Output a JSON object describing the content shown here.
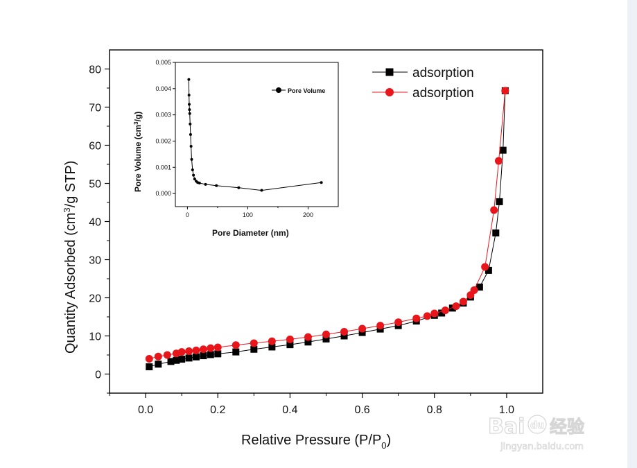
{
  "chart_data": {
    "type": "scatter",
    "xlabel": "Relative Pressure (P/P",
    "xlabel_sub": "0",
    "xlabel_close": ")",
    "ylabel": "Quantity Adsorbed (cm",
    "ylabel_sup": "3",
    "ylabel_tail": "/g STP)",
    "xlim": [
      -0.1,
      1.1
    ],
    "ylim": [
      -5,
      85
    ],
    "x_ticks": [
      0.0,
      0.2,
      0.4,
      0.6,
      0.8,
      1.0
    ],
    "x_tick_labels": [
      "0.0",
      "0.2",
      "0.4",
      "0.6",
      "0.8",
      "1.0"
    ],
    "y_ticks": [
      0,
      10,
      20,
      30,
      40,
      50,
      60,
      70,
      80
    ],
    "y_tick_labels": [
      "0",
      "10",
      "20",
      "30",
      "40",
      "50",
      "60",
      "70",
      "80"
    ],
    "legend_position": "top-right",
    "series": [
      {
        "name": "adsorption",
        "color": "#000000",
        "marker": "square",
        "x": [
          0.01,
          0.035,
          0.07,
          0.085,
          0.1,
          0.12,
          0.14,
          0.16,
          0.18,
          0.2,
          0.25,
          0.3,
          0.35,
          0.4,
          0.45,
          0.5,
          0.55,
          0.6,
          0.65,
          0.7,
          0.75,
          0.8,
          0.82,
          0.85,
          0.88,
          0.9,
          0.925,
          0.95,
          0.97,
          0.98,
          0.99,
          0.996
        ],
        "y": [
          1.9,
          2.6,
          3.3,
          3.6,
          3.9,
          4.2,
          4.5,
          4.8,
          5.1,
          5.3,
          5.8,
          6.5,
          7.1,
          7.7,
          8.4,
          9.2,
          10.0,
          10.9,
          11.8,
          12.7,
          13.9,
          15.4,
          16.0,
          17.3,
          18.6,
          20.2,
          22.8,
          27.2,
          37.0,
          45.2,
          58.7,
          74.3
        ]
      },
      {
        "name": "adsorption",
        "color": "#e8151b",
        "marker": "circle",
        "x": [
          0.01,
          0.035,
          0.06,
          0.085,
          0.1,
          0.12,
          0.14,
          0.16,
          0.18,
          0.2,
          0.25,
          0.3,
          0.35,
          0.4,
          0.45,
          0.5,
          0.55,
          0.6,
          0.65,
          0.7,
          0.75,
          0.78,
          0.8,
          0.83,
          0.86,
          0.88,
          0.9,
          0.91,
          0.94,
          0.965,
          0.978,
          0.996
        ],
        "y": [
          4.0,
          4.6,
          5.0,
          5.4,
          5.8,
          6.0,
          6.2,
          6.5,
          6.8,
          7.0,
          7.6,
          8.1,
          8.6,
          9.1,
          9.7,
          10.4,
          11.1,
          11.9,
          12.7,
          13.6,
          14.6,
          15.2,
          15.9,
          16.7,
          17.8,
          19.0,
          20.7,
          22.0,
          28.1,
          43.0,
          55.9,
          74.3
        ]
      }
    ],
    "inset": {
      "type": "line",
      "xlabel": "Pore Diameter (nm)",
      "ylabel": "Pore Volume (cm",
      "ylabel_sup": "3",
      "ylabel_tail": "/g)",
      "xlim": [
        -20,
        250
      ],
      "ylim": [
        -0.0005,
        0.005
      ],
      "x_ticks": [
        0,
        100,
        200
      ],
      "x_tick_labels": [
        "0",
        "100",
        "200"
      ],
      "y_ticks": [
        0.0,
        0.001,
        0.002,
        0.003,
        0.004,
        0.005
      ],
      "y_tick_labels": [
        "0.000",
        "0.001",
        "0.002",
        "0.003",
        "0.004",
        "0.005"
      ],
      "legend_position": "top-right",
      "series": [
        {
          "name": "Pore Volume",
          "color": "#000000",
          "x": [
            2.3,
            2.6,
            3.0,
            3.4,
            3.8,
            4.5,
            5.2,
            6.0,
            7.0,
            8.5,
            10.0,
            12.0,
            14.5,
            17.0,
            20.0,
            30.0,
            48.0,
            85.0,
            123.0,
            222.0
          ],
          "y": [
            0.00435,
            0.00375,
            0.0034,
            0.0032,
            0.00305,
            0.00265,
            0.00225,
            0.0018,
            0.0013,
            0.0009,
            0.0007,
            0.00055,
            0.00047,
            0.00042,
            0.0004,
            0.00035,
            0.0003,
            0.00022,
            0.00012,
            0.00042
          ]
        }
      ]
    }
  },
  "watermark": {
    "logo": "Bai",
    "logo_mark": "du",
    "logo_cn": "经验",
    "url": "jingyan.baidu.com"
  }
}
